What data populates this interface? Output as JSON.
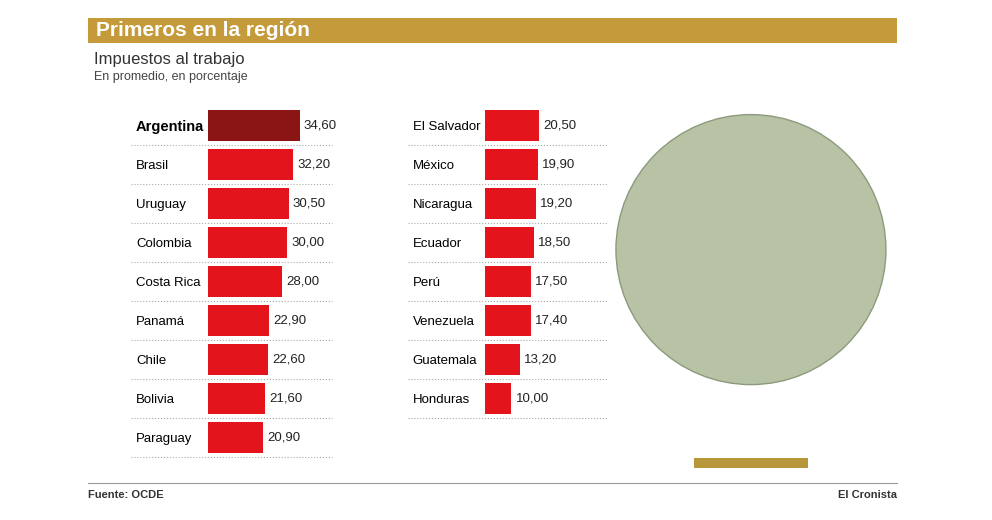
{
  "chart_data": {
    "type": "bar",
    "orientation": "horizontal",
    "title": "Primeros en la región",
    "subtitle": "Impuestos al trabajo",
    "annotations": [
      "En promedio, en porcentaje",
      "Fuente: OCDE",
      "El Cronista"
    ],
    "categories": [
      "Argentina",
      "Brasil",
      "Uruguay",
      "Colombia",
      "Costa Rica",
      "Panamá",
      "Chile",
      "Bolivia",
      "Paraguay",
      "El Salvador",
      "México",
      "Nicaragua",
      "Ecuador",
      "Perú",
      "Venezuela",
      "Guatemala",
      "Honduras"
    ],
    "values": [
      34.6,
      32.2,
      30.5,
      30.0,
      28.0,
      22.9,
      22.6,
      21.6,
      20.9,
      20.5,
      19.9,
      19.2,
      18.5,
      17.5,
      17.4,
      13.2,
      10.0
    ],
    "value_labels": [
      "34,60",
      "32,20",
      "30,50",
      "30,00",
      "28,00",
      "22,90",
      "22,60",
      "21,60",
      "20,90",
      "20,50",
      "19,90",
      "19,20",
      "18,50",
      "17,50",
      "17,40",
      "13,20",
      "10,00"
    ],
    "colors": [
      "#8b1414",
      "#e3141b",
      "#e3141b",
      "#e3141b",
      "#e3141b",
      "#e3141b",
      "#e3141b",
      "#e3141b",
      "#e3141b",
      "#e3141b",
      "#e3141b",
      "#e3141b",
      "#e3141b",
      "#e3141b",
      "#e3141b",
      "#e3141b",
      "#e3141b"
    ],
    "data_labels": true,
    "tick_labels": "y"
  }
}
